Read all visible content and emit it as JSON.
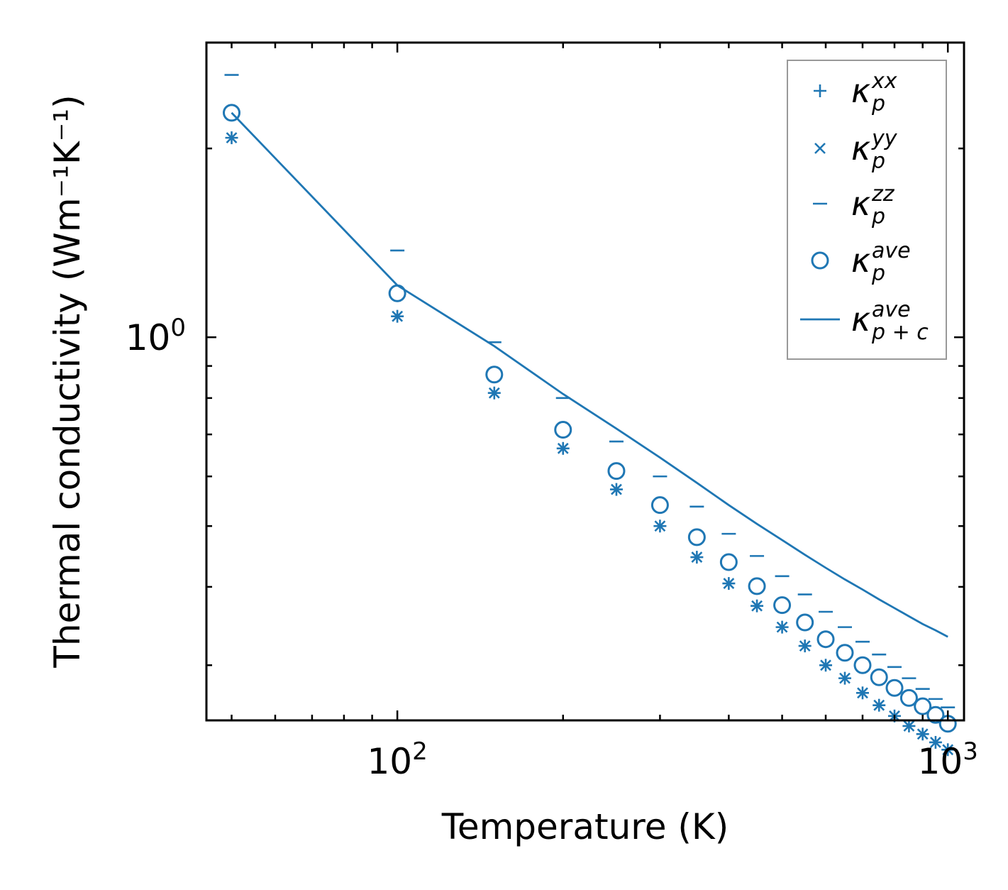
{
  "colors": {
    "series": "#1f77b4",
    "axis": "#000000",
    "legend_border": "#999999",
    "background": "#ffffff"
  },
  "chart_data": {
    "type": "scatter",
    "xscale": "log",
    "yscale": "log",
    "xlim": [
      45,
      1070
    ],
    "ylim": [
      0.245,
      2.95
    ],
    "xlabel": "Temperature (K)",
    "ylabel": "Thermal conductivity (Wm⁻¹K⁻¹)",
    "xticks": [
      {
        "base": "10",
        "exp": "2",
        "value": 100
      },
      {
        "base": "10",
        "exp": "3",
        "value": 1000
      }
    ],
    "yticks": [
      {
        "base": "10",
        "exp": "0",
        "value": 1
      }
    ],
    "legend_position": "upper-right",
    "x": [
      50,
      100,
      150,
      200,
      250,
      300,
      350,
      400,
      450,
      500,
      550,
      600,
      650,
      700,
      750,
      800,
      850,
      900,
      950,
      1000
    ],
    "series": [
      {
        "name": "κ_p^xx",
        "label_base": "κ",
        "sub": "p",
        "sup": "xx",
        "marker": "plus",
        "values": [
          2.08,
          1.08,
          0.815,
          0.665,
          0.572,
          0.5,
          0.446,
          0.405,
          0.373,
          0.345,
          0.322,
          0.3,
          0.286,
          0.271,
          0.259,
          0.249,
          0.24,
          0.233,
          0.226,
          0.22
        ]
      },
      {
        "name": "κ_p^yy",
        "label_base": "κ",
        "sub": "p",
        "sup": "yy",
        "marker": "x",
        "values": [
          2.08,
          1.08,
          0.815,
          0.665,
          0.572,
          0.5,
          0.446,
          0.405,
          0.373,
          0.345,
          0.322,
          0.3,
          0.286,
          0.271,
          0.259,
          0.249,
          0.24,
          0.233,
          0.226,
          0.22
        ]
      },
      {
        "name": "κ_p^zz",
        "label_base": "κ",
        "sub": "p",
        "sup": "zz",
        "marker": "hline",
        "values": [
          2.62,
          1.375,
          0.982,
          0.8,
          0.682,
          0.6,
          0.537,
          0.486,
          0.448,
          0.416,
          0.389,
          0.365,
          0.345,
          0.327,
          0.312,
          0.298,
          0.286,
          0.275,
          0.265,
          0.257
        ]
      },
      {
        "name": "κ_p^ave",
        "label_base": "κ",
        "sub": "p",
        "sup": "ave",
        "marker": "circle",
        "values": [
          2.28,
          1.175,
          0.872,
          0.712,
          0.612,
          0.54,
          0.48,
          0.438,
          0.401,
          0.374,
          0.351,
          0.33,
          0.314,
          0.3,
          0.287,
          0.276,
          0.266,
          0.258,
          0.25,
          0.242
        ]
      },
      {
        "name": "κ_p+c^ave",
        "label_base": "κ",
        "sub": "p + c",
        "sup": "ave",
        "marker": "line",
        "values": [
          2.28,
          1.21,
          0.968,
          0.812,
          0.715,
          0.643,
          0.586,
          0.54,
          0.504,
          0.475,
          0.45,
          0.429,
          0.411,
          0.396,
          0.382,
          0.37,
          0.359,
          0.349,
          0.341,
          0.333
        ]
      }
    ]
  }
}
